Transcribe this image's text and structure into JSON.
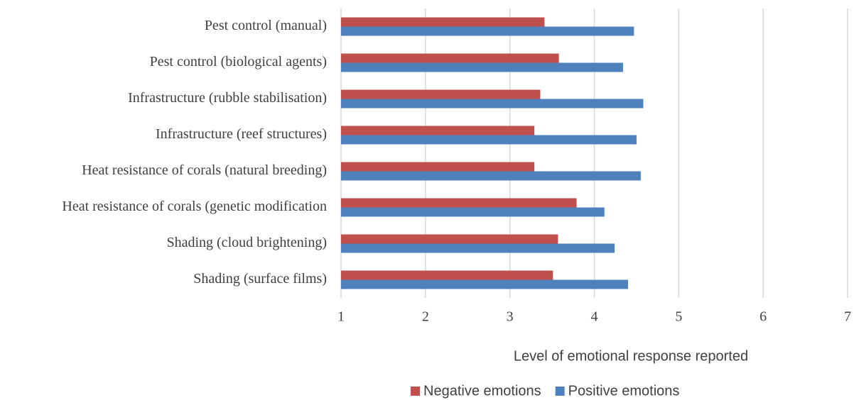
{
  "chart_data": {
    "type": "bar",
    "orientation": "horizontal",
    "x_label": "Level of emotional response reported",
    "categories": [
      "Pest control (manual)",
      "Pest control (biological agents)",
      "Infrastructure (rubble stabilisation)",
      "Infrastructure (reef structures)",
      "Heat resistance of corals (natural breeding)",
      "Heat resistance of corals (genetic modification",
      "Shading (cloud brightening)",
      "Shading (surface films)"
    ],
    "series": [
      {
        "name": "Negative emotions",
        "color": "#c0504d",
        "values": [
          3.41,
          3.58,
          3.36,
          3.29,
          3.29,
          3.79,
          3.57,
          3.51
        ]
      },
      {
        "name": "Positive emotions",
        "color": "#4f81bd",
        "values": [
          4.47,
          4.34,
          4.58,
          4.5,
          4.55,
          4.12,
          4.24,
          4.4
        ]
      }
    ],
    "xlim": [
      1,
      7
    ],
    "xticks": [
      1,
      2,
      3,
      4,
      5,
      6,
      7
    ],
    "grid": true,
    "legend": "bottom"
  }
}
